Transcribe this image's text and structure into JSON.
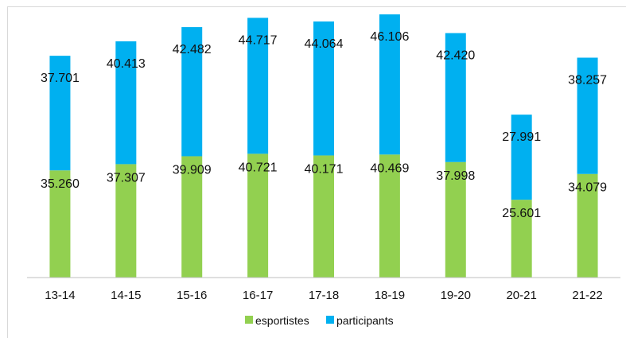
{
  "chart_data": {
    "type": "bar",
    "stacked": true,
    "categories": [
      "13-14",
      "14-15",
      "15-16",
      "16-17",
      "17-18",
      "18-19",
      "19-20",
      "20-21",
      "21-22"
    ],
    "series": [
      {
        "name": "esportistes",
        "color": "#92d050",
        "values": [
          35260,
          37307,
          39909,
          40721,
          40171,
          40469,
          37998,
          25601,
          34079
        ],
        "labels": [
          "35.260",
          "37.307",
          "39.909",
          "40.721",
          "40.171",
          "40.469",
          "37.998",
          "25.601",
          "34.079"
        ]
      },
      {
        "name": "participants",
        "color": "#00b0f0",
        "values": [
          37701,
          40413,
          42482,
          44717,
          44064,
          46106,
          42420,
          27991,
          38257
        ],
        "labels": [
          "37.701",
          "40.413",
          "42.482",
          "44.717",
          "44.064",
          "46.106",
          "42.420",
          "27.991",
          "38.257"
        ]
      }
    ],
    "ylim": [
      0,
      90000
    ],
    "grid": false,
    "legend": "bottom",
    "title": "",
    "xlabel": "",
    "ylabel": ""
  }
}
